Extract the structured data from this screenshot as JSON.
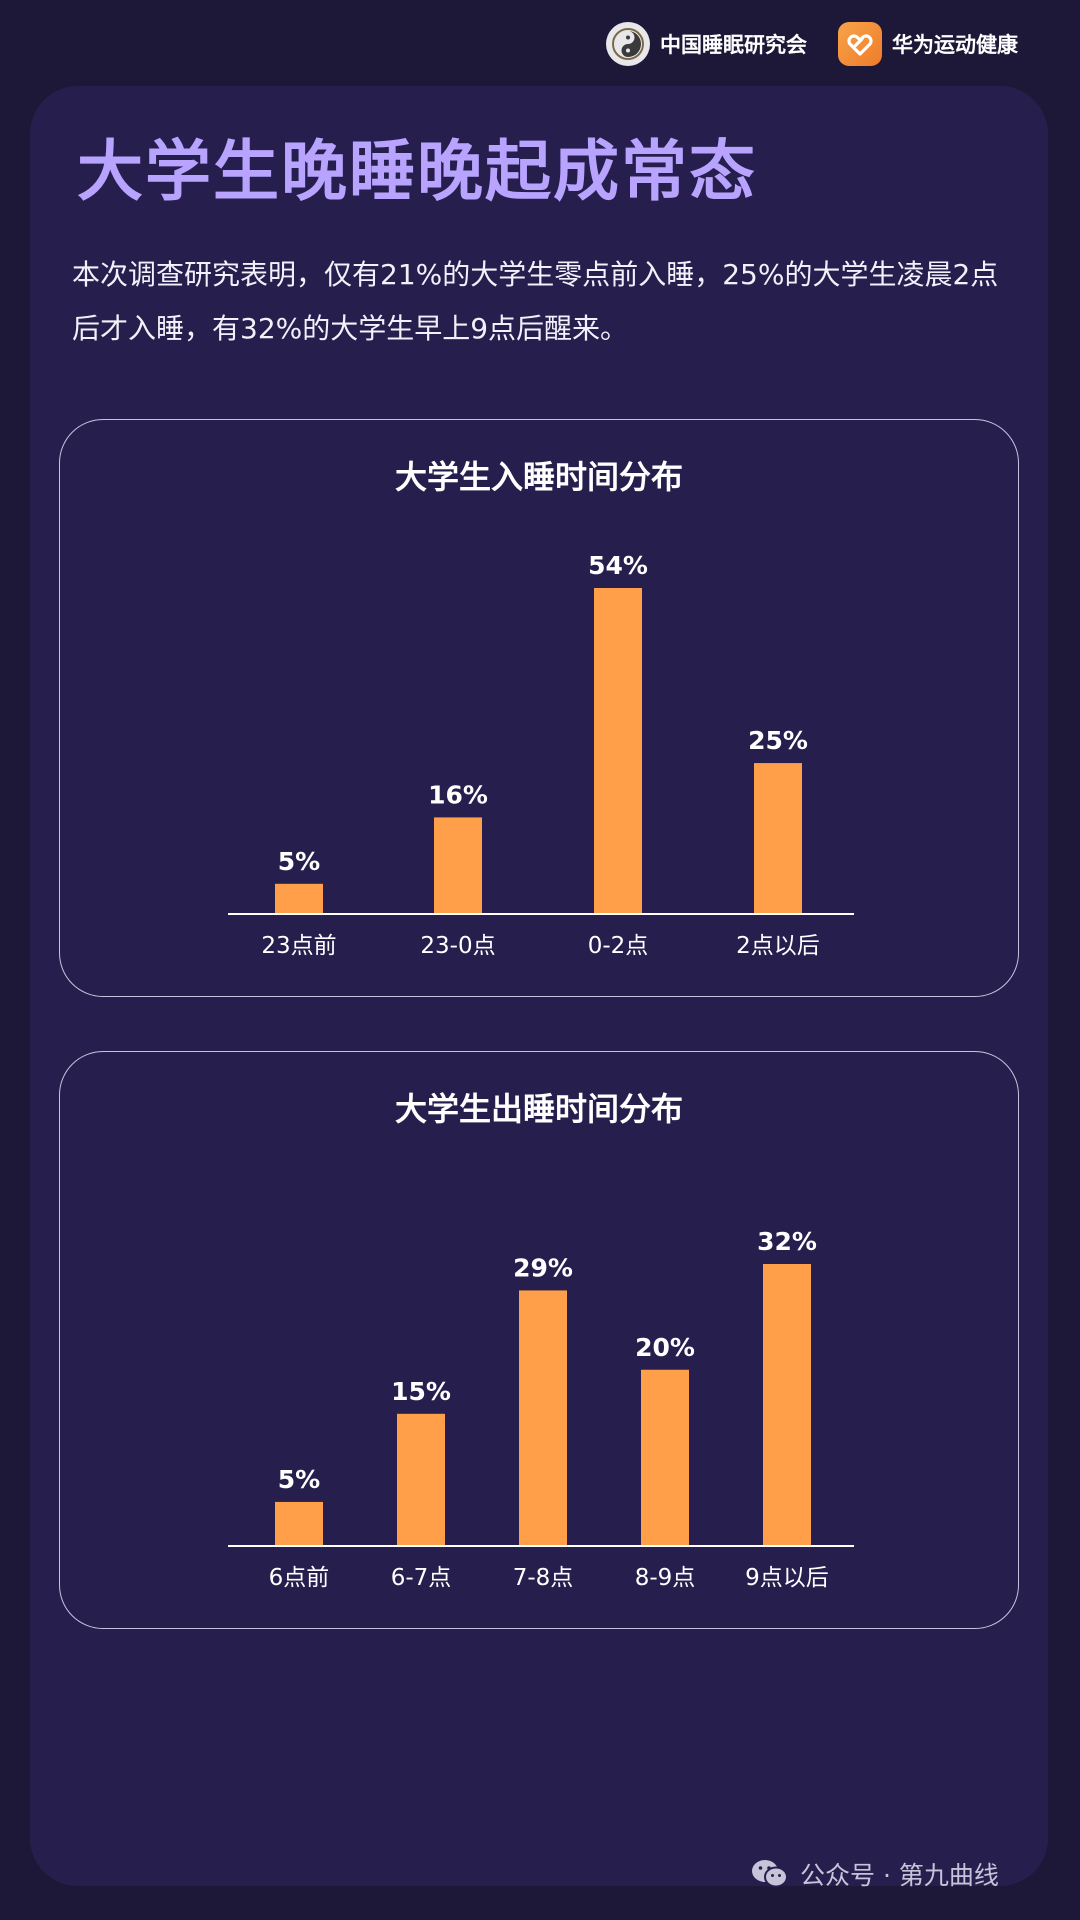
{
  "header": {
    "brands": [
      {
        "label": "中国睡眠研究会",
        "icon": "sleep-society-logo-icon"
      },
      {
        "label": "华为运动健康",
        "icon": "huawei-health-logo-icon"
      }
    ]
  },
  "title": "大学生晚睡晚起成常态",
  "description": "本次调查研究表明，仅有21%的大学生零点前入睡，25%的大学生凌晨2点后才入睡，有32%的大学生早上9点后醒来。",
  "colors": {
    "bar": "#ff9f4a",
    "title": "#b8a3ff",
    "panel": "#261f4d",
    "background": "#1d1838"
  },
  "chart_data": [
    {
      "type": "bar",
      "title": "大学生入睡时间分布",
      "categories": [
        "23点前",
        "23-0点",
        "0-2点",
        "2点以后"
      ],
      "values": [
        5,
        16,
        54,
        25
      ],
      "labels": [
        "5%",
        "16%",
        "54%",
        "25%"
      ],
      "ylim": [
        0,
        54
      ],
      "grid": false,
      "legend": "none"
    },
    {
      "type": "bar",
      "title": "大学生出睡时间分布",
      "categories": [
        "6点前",
        "6-7点",
        "7-8点",
        "8-9点",
        "9点以后"
      ],
      "values": [
        5,
        15,
        29,
        20,
        32
      ],
      "labels": [
        "5%",
        "15%",
        "29%",
        "20%",
        "32%"
      ],
      "ylim": [
        0,
        32
      ],
      "grid": false,
      "legend": "none"
    }
  ],
  "footer": {
    "text": "公众号 · 第九曲线",
    "icon": "wechat-icon"
  }
}
